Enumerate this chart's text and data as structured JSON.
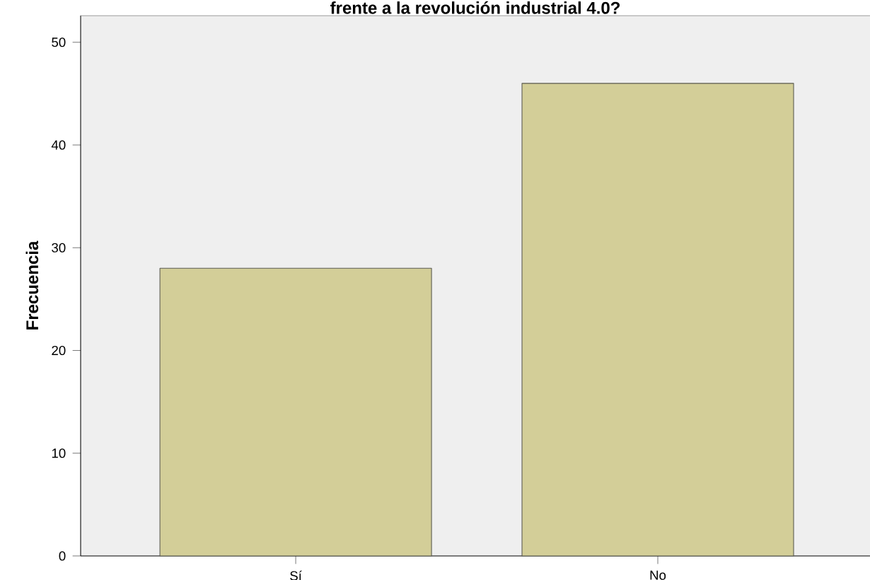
{
  "chart_data": {
    "type": "bar",
    "title": "frente a la revolución industrial 4.0?",
    "ylabel": "Frecuencia",
    "categories": [
      "Sí",
      "No"
    ],
    "values": [
      28,
      46
    ],
    "color": "#d3ce98",
    "ylim": [
      0,
      52.6
    ],
    "yticks": [
      0,
      10,
      20,
      30,
      40,
      50
    ],
    "grid": false
  }
}
